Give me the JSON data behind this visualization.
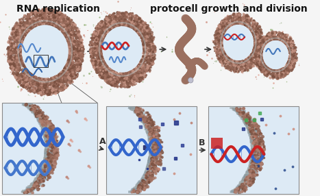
{
  "title_left": "RNA replication",
  "title_right": "protocell growth and division",
  "label_A": "A",
  "label_B": "B",
  "bg_color": "#f5f5f5",
  "title_fontsize": 10,
  "label_fontsize": 9,
  "membrane_outer": "#8b6355",
  "membrane_mid": "#b09080",
  "membrane_inner_ring": "#c8b0a0",
  "cell_interior": "#ddeaf5",
  "membrane_gray": "#a0a8a8",
  "rna_blue": "#4477bb",
  "rna_red": "#cc2222",
  "particle_green": "#88aa66",
  "particle_pink": "#cc8877",
  "arrow_color": "#333333"
}
